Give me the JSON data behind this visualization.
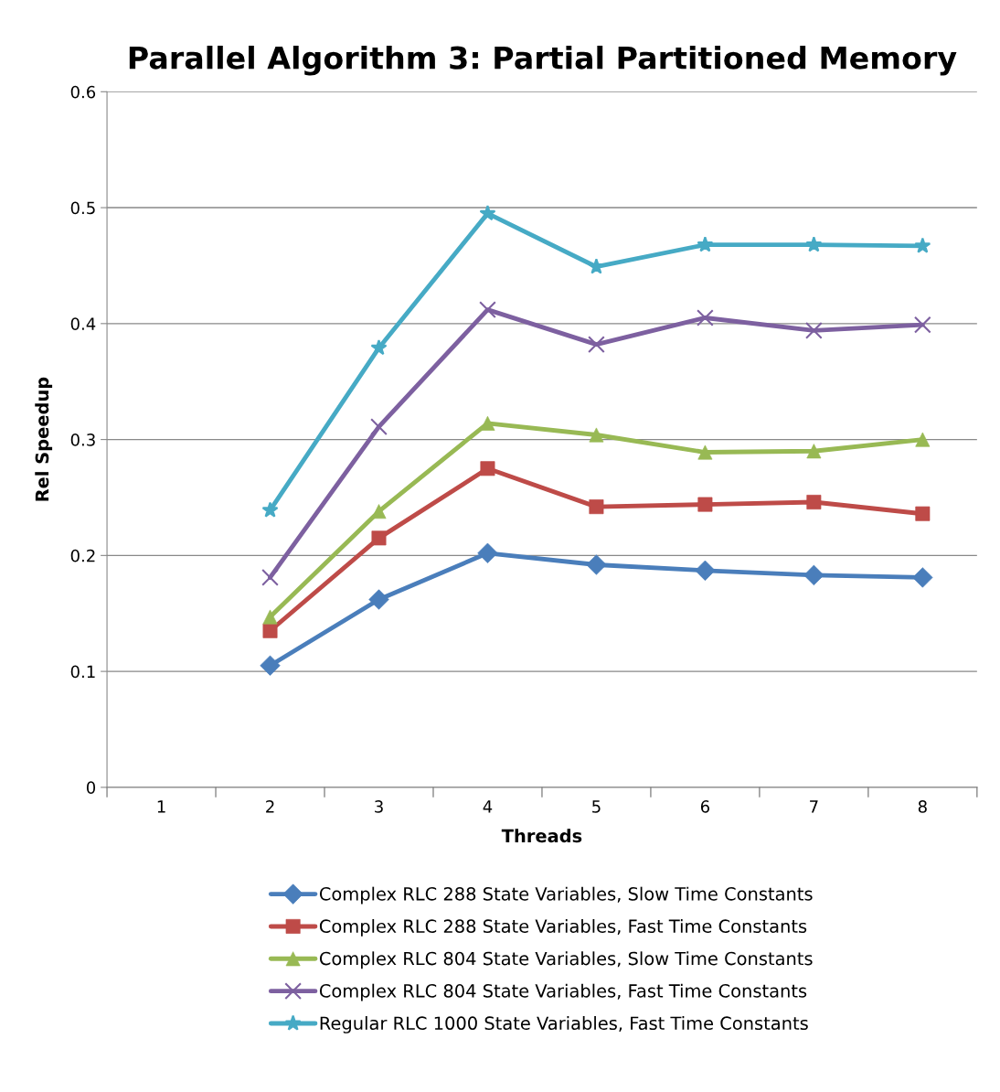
{
  "chart_data": {
    "type": "line",
    "title": "Parallel Algorithm 3: Partial Partitioned Memory",
    "xlabel": "Threads",
    "ylabel": "Rel Speedup",
    "categories": [
      "1",
      "2",
      "3",
      "4",
      "5",
      "6",
      "7",
      "8"
    ],
    "series": [
      {
        "name": "Complex RLC 288 State Variables, Slow Time Constants",
        "color": "#4a7ebb",
        "marker": "diamond",
        "values": [
          null,
          0.105,
          0.162,
          0.202,
          0.192,
          0.187,
          0.183,
          0.181
        ]
      },
      {
        "name": "Complex RLC 288 State Variables, Fast Time Constants",
        "color": "#be4b48",
        "marker": "square",
        "values": [
          null,
          0.135,
          0.215,
          0.275,
          0.242,
          0.244,
          0.246,
          0.236
        ]
      },
      {
        "name": "Complex RLC 804 State Variables, Slow Time Constants",
        "color": "#98b954",
        "marker": "triangle",
        "values": [
          null,
          0.147,
          0.238,
          0.314,
          0.304,
          0.289,
          0.29,
          0.3
        ]
      },
      {
        "name": "Complex RLC 804 State Variables, Fast Time Constants",
        "color": "#7d60a0",
        "marker": "cross",
        "values": [
          null,
          0.181,
          0.311,
          0.412,
          0.382,
          0.405,
          0.394,
          0.399
        ]
      },
      {
        "name": "Regular RLC 1000 State Variables, Fast Time Constants",
        "color": "#46aac5",
        "marker": "star",
        "values": [
          null,
          0.239,
          0.379,
          0.495,
          0.449,
          0.468,
          0.468,
          0.467
        ]
      }
    ],
    "ylim": [
      0,
      0.6
    ],
    "yticks": [
      {
        "value": 0,
        "label": "0"
      },
      0.1,
      0.2,
      0.3,
      0.4,
      0.5,
      0.6
    ],
    "grid": "y",
    "legend": "bottom",
    "line_style": "solid"
  }
}
